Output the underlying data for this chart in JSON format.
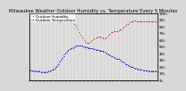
{
  "title": "Milwaukee Weather Outdoor Humidity vs. Temperature Every 5 Minutes",
  "bg_color": "#d8d8d8",
  "plot_bg_color": "#d8d8d8",
  "grid_color": "#ffffff",
  "humidity_color": "#cc0000",
  "temp_color": "#0000cc",
  "humidity_label": "Outdoor Humidity",
  "temp_label": "Outdoor Temperature",
  "right_ylabels": [
    "100%",
    "90%",
    "80%",
    "70%",
    "60%",
    "50%",
    "40%",
    "30%",
    "20%",
    "10%",
    "0%"
  ],
  "right_yvals": [
    100,
    90,
    80,
    70,
    60,
    50,
    40,
    30,
    20,
    10,
    0
  ],
  "humidity_x": [
    0,
    1,
    2,
    3,
    4,
    5,
    6,
    7,
    8,
    9,
    10,
    11,
    12,
    13,
    14,
    15,
    16,
    17,
    18,
    19,
    20,
    21,
    22,
    23,
    24,
    25,
    26,
    27,
    28,
    29,
    30,
    31,
    32,
    33,
    34,
    35,
    36,
    37,
    38,
    39,
    40,
    41,
    42,
    43,
    44,
    45,
    46,
    47,
    48,
    49,
    50,
    51,
    52,
    53,
    54,
    55,
    56,
    57,
    58,
    59,
    60,
    61,
    62,
    63,
    64,
    65,
    66,
    67,
    68,
    69,
    70,
    71,
    72,
    73,
    74,
    75,
    76,
    77,
    78,
    79,
    80,
    81,
    82,
    83,
    84,
    85,
    86,
    87,
    88,
    89,
    90,
    91,
    92,
    93,
    94,
    95,
    96,
    97,
    98,
    99,
    100
  ],
  "humidity_y": [
    88,
    88,
    88,
    89,
    89,
    90,
    90,
    90,
    90,
    90,
    90,
    90,
    90,
    91,
    91,
    91,
    92,
    92,
    92,
    92,
    93,
    93,
    94,
    94,
    94,
    94,
    94,
    94,
    93,
    93,
    92,
    91,
    90,
    88,
    87,
    84,
    82,
    79,
    75,
    72,
    68,
    65,
    62,
    59,
    57,
    56,
    55,
    56,
    58,
    59,
    61,
    62,
    63,
    64,
    65,
    65,
    64,
    63,
    62,
    62,
    63,
    65,
    67,
    69,
    71,
    72,
    73,
    73,
    73,
    73,
    74,
    75,
    76,
    78,
    79,
    81,
    83,
    84,
    86,
    87,
    88,
    88,
    89,
    89,
    88,
    88,
    87,
    87,
    87,
    88,
    87,
    87,
    87,
    87,
    87,
    87,
    87,
    87,
    87,
    87,
    87
  ],
  "temp_x": [
    0,
    1,
    2,
    3,
    4,
    5,
    6,
    7,
    8,
    9,
    10,
    11,
    12,
    13,
    14,
    15,
    16,
    17,
    18,
    19,
    20,
    21,
    22,
    23,
    24,
    25,
    26,
    27,
    28,
    29,
    30,
    31,
    32,
    33,
    34,
    35,
    36,
    37,
    38,
    39,
    40,
    41,
    42,
    43,
    44,
    45,
    46,
    47,
    48,
    49,
    50,
    51,
    52,
    53,
    54,
    55,
    56,
    57,
    58,
    59,
    60,
    61,
    62,
    63,
    64,
    65,
    66,
    67,
    68,
    69,
    70,
    71,
    72,
    73,
    74,
    75,
    76,
    77,
    78,
    79,
    80,
    81,
    82,
    83,
    84,
    85,
    86,
    87,
    88,
    89,
    90,
    91,
    92,
    93,
    94,
    95,
    96,
    97,
    98,
    99,
    100
  ],
  "temp_y": [
    14,
    14,
    14,
    14,
    13,
    13,
    13,
    13,
    13,
    12,
    12,
    12,
    12,
    12,
    12,
    13,
    13,
    14,
    15,
    16,
    17,
    19,
    21,
    24,
    27,
    30,
    33,
    36,
    39,
    41,
    43,
    45,
    46,
    47,
    48,
    49,
    50,
    51,
    51,
    51,
    51,
    51,
    50,
    49,
    49,
    49,
    48,
    48,
    47,
    47,
    46,
    46,
    45,
    45,
    45,
    44,
    44,
    43,
    42,
    42,
    40,
    39,
    38,
    37,
    36,
    35,
    34,
    33,
    32,
    31,
    31,
    30,
    28,
    27,
    26,
    24,
    23,
    22,
    21,
    20,
    19,
    19,
    18,
    17,
    17,
    16,
    16,
    15,
    15,
    14,
    14,
    14,
    14,
    13,
    13,
    13,
    13,
    13,
    13,
    13,
    13
  ],
  "xlim": [
    0,
    100
  ],
  "humidity_ylim": [
    0,
    100
  ],
  "temp_ylim": [
    0,
    80
  ],
  "markersize": 1.2,
  "title_fontsize": 3.8,
  "tick_fontsize": 3.0,
  "legend_fontsize": 3.0
}
